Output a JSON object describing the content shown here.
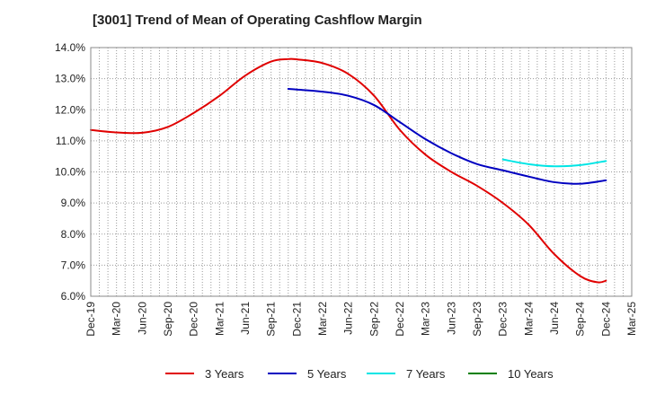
{
  "chart_data": {
    "type": "line",
    "title": "[3001]  Trend of Mean of Operating Cashflow Margin",
    "xlabel": "",
    "ylabel": "",
    "ylim": [
      6.0,
      14.0
    ],
    "y_ticks": [
      "6.0%",
      "7.0%",
      "8.0%",
      "9.0%",
      "10.0%",
      "11.0%",
      "12.0%",
      "13.0%",
      "14.0%"
    ],
    "x_range": [
      0,
      63
    ],
    "x_ticks": [
      "Dec-19",
      "Mar-20",
      "Jun-20",
      "Sep-20",
      "Dec-20",
      "Mar-21",
      "Jun-21",
      "Sep-21",
      "Dec-21",
      "Mar-22",
      "Jun-22",
      "Sep-22",
      "Dec-22",
      "Mar-23",
      "Jun-23",
      "Sep-23",
      "Dec-23",
      "Mar-24",
      "Jun-24",
      "Sep-24",
      "Dec-24",
      "Mar-25"
    ],
    "grid": true,
    "legend_position": "bottom",
    "series": [
      {
        "name": "3 Years",
        "color": "#e00000",
        "x": [
          0,
          3,
          6,
          9,
          12,
          15,
          18,
          21,
          23,
          24,
          27,
          30,
          33,
          36,
          39,
          42,
          45,
          48,
          51,
          54,
          57,
          59,
          60
        ],
        "values": [
          11.35,
          11.27,
          11.26,
          11.45,
          11.9,
          12.45,
          13.1,
          13.55,
          13.63,
          13.62,
          13.5,
          13.15,
          12.45,
          11.35,
          10.55,
          10.0,
          9.55,
          9.0,
          8.3,
          7.35,
          6.65,
          6.45,
          6.5
        ]
      },
      {
        "name": "5 Years",
        "color": "#0000c0",
        "x": [
          23,
          24,
          27,
          30,
          33,
          36,
          39,
          42,
          45,
          48,
          51,
          54,
          57,
          60
        ],
        "values": [
          12.67,
          12.65,
          12.58,
          12.45,
          12.15,
          11.6,
          11.05,
          10.6,
          10.25,
          10.05,
          9.85,
          9.67,
          9.62,
          9.73
        ]
      },
      {
        "name": "7 Years",
        "color": "#00e5e5",
        "x": [
          48,
          51,
          54,
          57,
          60
        ],
        "values": [
          10.4,
          10.25,
          10.18,
          10.22,
          10.35
        ]
      },
      {
        "name": "10 Years",
        "color": "#008000",
        "x": [],
        "values": []
      }
    ]
  }
}
